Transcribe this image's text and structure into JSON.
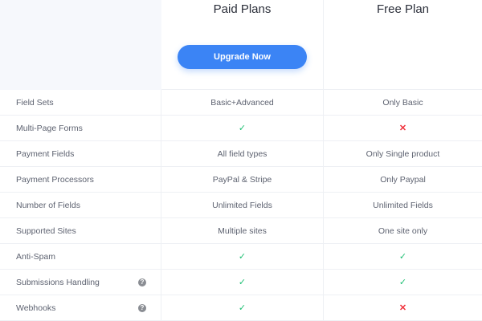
{
  "plans": {
    "paid": "Paid Plans",
    "free": "Free Plan",
    "upgrade_label": "Upgrade Now"
  },
  "colors": {
    "accent": "#3b84f5",
    "check": "#1dbf73",
    "cross": "#f0323c"
  },
  "rows": [
    {
      "feature": "Field Sets",
      "paid": "Basic+Advanced",
      "free": "Only Basic"
    },
    {
      "feature": "Multi-Page Forms",
      "paid": "check",
      "free": "cross"
    },
    {
      "feature": "Payment Fields",
      "paid": "All field types",
      "free": "Only Single product"
    },
    {
      "feature": "Payment Processors",
      "paid": "PayPal & Stripe",
      "free": "Only Paypal"
    },
    {
      "feature": "Number of Fields",
      "paid": "Unlimited Fields",
      "free": "Unlimited Fields"
    },
    {
      "feature": "Supported Sites",
      "paid": "Multiple sites",
      "free": "One site only"
    },
    {
      "feature": "Anti-Spam",
      "paid": "check",
      "free": "check"
    },
    {
      "feature": "Submissions Handling",
      "help": true,
      "paid": "check",
      "free": "check"
    },
    {
      "feature": "Webhooks",
      "help": true,
      "paid": "check",
      "free": "cross"
    }
  ]
}
